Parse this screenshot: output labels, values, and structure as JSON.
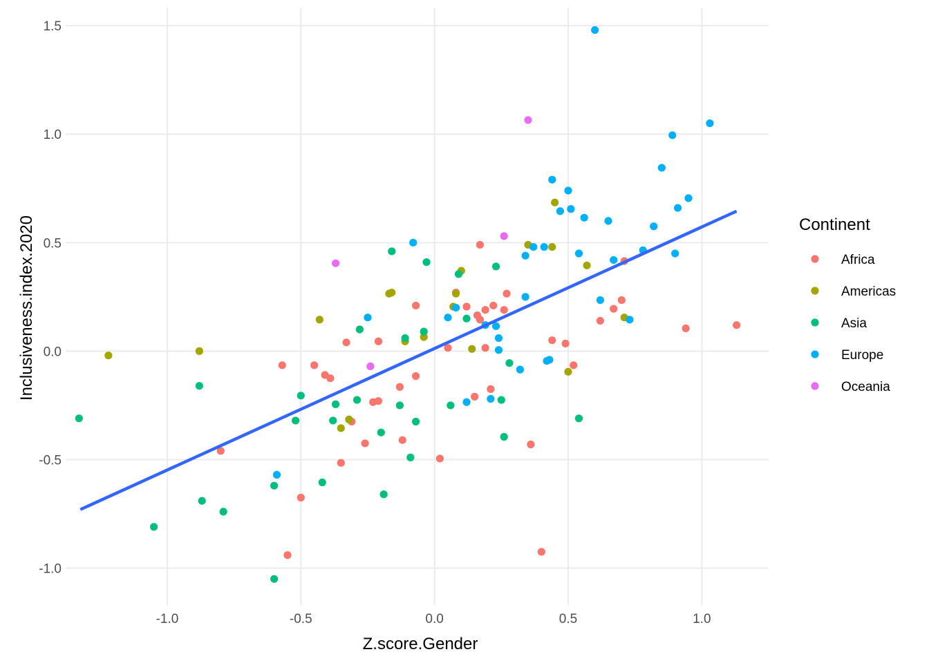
{
  "chart_data": {
    "type": "scatter",
    "title": "",
    "xlabel": "Z.score.Gender",
    "ylabel": "Inclusiveness.index.2020",
    "xlim": [
      -1.38,
      1.25
    ],
    "ylim": [
      -1.17,
      1.58
    ],
    "x_ticks": [
      -1.0,
      -0.5,
      0.0,
      0.5,
      1.0
    ],
    "x_tick_labels": [
      "-1.0",
      "-0.5",
      "0.0",
      "0.5",
      "1.0"
    ],
    "y_ticks": [
      -1.0,
      -0.5,
      0.0,
      0.5,
      1.0,
      1.5
    ],
    "y_tick_labels": [
      "-1.0",
      "-0.5",
      "0.0",
      "0.5",
      "1.0",
      "1.5"
    ],
    "grid": true,
    "legend": {
      "title": "Continent",
      "position": "right",
      "entries": [
        {
          "name": "Africa",
          "color": "#F8766D"
        },
        {
          "name": "Americas",
          "color": "#A3A500"
        },
        {
          "name": "Asia",
          "color": "#00BF7D"
        },
        {
          "name": "Europe",
          "color": "#00B0F6"
        },
        {
          "name": "Oceania",
          "color": "#E76BF3"
        }
      ]
    },
    "trend_line": {
      "color": "#3366FF",
      "x": [
        -1.325,
        1.13
      ],
      "y": [
        -0.73,
        0.645
      ]
    },
    "series": [
      {
        "name": "Africa",
        "color": "#F8766D",
        "points": [
          [
            -0.8,
            -0.46
          ],
          [
            -0.57,
            -0.065
          ],
          [
            -0.45,
            -0.065
          ],
          [
            -0.41,
            -0.11
          ],
          [
            -0.39,
            -0.125
          ],
          [
            -0.33,
            0.04
          ],
          [
            -0.31,
            -0.325
          ],
          [
            -0.35,
            -0.515
          ],
          [
            -0.26,
            -0.425
          ],
          [
            -0.23,
            -0.235
          ],
          [
            -0.21,
            0.045
          ],
          [
            -0.21,
            -0.23
          ],
          [
            -0.13,
            -0.165
          ],
          [
            -0.12,
            -0.41
          ],
          [
            -0.07,
            -0.115
          ],
          [
            -0.07,
            0.21
          ],
          [
            -0.5,
            -0.675
          ],
          [
            -0.55,
            -0.94
          ],
          [
            0.02,
            -0.495
          ],
          [
            0.05,
            0.015
          ],
          [
            0.08,
            0.27
          ],
          [
            0.12,
            0.205
          ],
          [
            0.15,
            -0.21
          ],
          [
            0.16,
            0.165
          ],
          [
            0.17,
            0.49
          ],
          [
            0.17,
            0.145
          ],
          [
            0.19,
            0.19
          ],
          [
            0.19,
            0.015
          ],
          [
            0.21,
            -0.175
          ],
          [
            0.22,
            0.21
          ],
          [
            0.26,
            0.19
          ],
          [
            0.27,
            0.265
          ],
          [
            0.36,
            -0.43
          ],
          [
            0.4,
            -0.925
          ],
          [
            0.44,
            0.05
          ],
          [
            0.49,
            0.035
          ],
          [
            0.52,
            -0.065
          ],
          [
            0.62,
            0.14
          ],
          [
            0.67,
            0.195
          ],
          [
            0.7,
            0.235
          ],
          [
            0.71,
            0.415
          ],
          [
            0.94,
            0.105
          ],
          [
            1.13,
            0.12
          ]
        ]
      },
      {
        "name": "Americas",
        "color": "#A3A500",
        "points": [
          [
            -1.22,
            -0.02
          ],
          [
            -0.88,
            0.0
          ],
          [
            -0.43,
            0.145
          ],
          [
            -0.35,
            -0.355
          ],
          [
            -0.32,
            -0.315
          ],
          [
            -0.17,
            0.265
          ],
          [
            -0.16,
            0.27
          ],
          [
            -0.11,
            0.045
          ],
          [
            -0.04,
            0.065
          ],
          [
            0.07,
            0.205
          ],
          [
            0.08,
            0.265
          ],
          [
            0.1,
            0.37
          ],
          [
            0.14,
            0.01
          ],
          [
            0.35,
            0.49
          ],
          [
            0.44,
            0.48
          ],
          [
            0.45,
            0.685
          ],
          [
            0.5,
            -0.095
          ],
          [
            0.57,
            0.395
          ],
          [
            0.71,
            0.155
          ]
        ]
      },
      {
        "name": "Asia",
        "color": "#00BF7D",
        "points": [
          [
            -1.33,
            -0.31
          ],
          [
            -1.05,
            -0.81
          ],
          [
            -0.88,
            -0.16
          ],
          [
            -0.87,
            -0.69
          ],
          [
            -0.79,
            -0.74
          ],
          [
            -0.6,
            -0.62
          ],
          [
            -0.6,
            -1.05
          ],
          [
            -0.52,
            -0.32
          ],
          [
            -0.5,
            -0.205
          ],
          [
            -0.42,
            -0.605
          ],
          [
            -0.38,
            -0.32
          ],
          [
            -0.37,
            -0.245
          ],
          [
            -0.29,
            -0.225
          ],
          [
            -0.28,
            0.1
          ],
          [
            -0.2,
            -0.375
          ],
          [
            -0.19,
            -0.66
          ],
          [
            -0.16,
            0.46
          ],
          [
            -0.13,
            -0.25
          ],
          [
            -0.11,
            0.06
          ],
          [
            -0.09,
            -0.49
          ],
          [
            -0.07,
            -0.325
          ],
          [
            -0.04,
            0.09
          ],
          [
            -0.03,
            0.41
          ],
          [
            0.06,
            -0.25
          ],
          [
            0.09,
            0.355
          ],
          [
            0.12,
            0.15
          ],
          [
            0.23,
            0.39
          ],
          [
            0.25,
            -0.225
          ],
          [
            0.26,
            -0.395
          ],
          [
            0.28,
            -0.055
          ],
          [
            0.54,
            -0.31
          ]
        ]
      },
      {
        "name": "Europe",
        "color": "#00B0F6",
        "points": [
          [
            -0.59,
            -0.57
          ],
          [
            -0.25,
            0.155
          ],
          [
            -0.08,
            0.5
          ],
          [
            0.05,
            0.155
          ],
          [
            0.08,
            0.2
          ],
          [
            0.12,
            -0.235
          ],
          [
            0.19,
            0.12
          ],
          [
            0.21,
            -0.22
          ],
          [
            0.23,
            0.115
          ],
          [
            0.24,
            0.06
          ],
          [
            0.24,
            0.005
          ],
          [
            0.32,
            -0.085
          ],
          [
            0.34,
            0.44
          ],
          [
            0.34,
            0.25
          ],
          [
            0.37,
            0.48
          ],
          [
            0.41,
            0.48
          ],
          [
            0.42,
            -0.045
          ],
          [
            0.43,
            -0.04
          ],
          [
            0.44,
            0.79
          ],
          [
            0.47,
            0.645
          ],
          [
            0.5,
            0.74
          ],
          [
            0.51,
            0.655
          ],
          [
            0.54,
            0.45
          ],
          [
            0.56,
            0.615
          ],
          [
            0.6,
            1.48
          ],
          [
            0.62,
            0.235
          ],
          [
            0.65,
            0.6
          ],
          [
            0.67,
            0.42
          ],
          [
            0.73,
            0.145
          ],
          [
            0.78,
            0.465
          ],
          [
            0.82,
            0.575
          ],
          [
            0.85,
            0.845
          ],
          [
            0.89,
            0.995
          ],
          [
            0.9,
            0.45
          ],
          [
            0.91,
            0.66
          ],
          [
            0.95,
            0.705
          ],
          [
            1.03,
            1.05
          ]
        ]
      },
      {
        "name": "Oceania",
        "color": "#E76BF3",
        "points": [
          [
            -0.37,
            0.405
          ],
          [
            -0.24,
            -0.07
          ],
          [
            0.26,
            0.53
          ],
          [
            0.35,
            1.065
          ]
        ]
      }
    ]
  }
}
